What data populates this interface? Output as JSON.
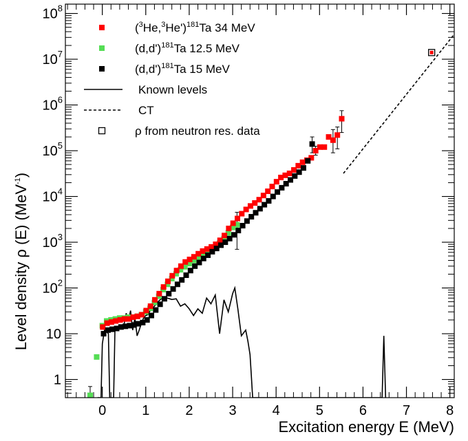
{
  "chart_data": {
    "type": "scatter",
    "xlabel": "Excitation energy E (MeV)",
    "ylabel": "Level density ρ (E) (MeV",
    "ylabel_sup": "-1",
    "ylabel_end": ")",
    "xlim": [
      -0.85,
      8.1
    ],
    "ylim": [
      0.4,
      160000000.0
    ],
    "yscale": "log",
    "x_ticks": [
      0,
      1,
      2,
      3,
      4,
      5,
      6,
      7,
      8
    ],
    "x_tick_labels": [
      "0",
      "1",
      "2",
      "3",
      "4",
      "5",
      "6",
      "7",
      "8"
    ],
    "y_ticks": [
      1,
      10,
      100,
      1000,
      10000,
      100000,
      1000000,
      10000000,
      100000000
    ],
    "y_tick_labels": [
      {
        "base": "1",
        "exp": ""
      },
      {
        "base": "10",
        "exp": ""
      },
      {
        "base": "10",
        "exp": "2"
      },
      {
        "base": "10",
        "exp": "3"
      },
      {
        "base": "10",
        "exp": "4"
      },
      {
        "base": "10",
        "exp": "5"
      },
      {
        "base": "10",
        "exp": "6"
      },
      {
        "base": "10",
        "exp": "7"
      },
      {
        "base": "10",
        "exp": "8"
      }
    ],
    "legend": [
      {
        "parts": [
          "(",
          "3",
          "He,",
          "3",
          "He')",
          "181",
          "Ta 34 MeV"
        ],
        "sup_idx": [
          1,
          3,
          5
        ],
        "kind": "square",
        "color": "#ff0000"
      },
      {
        "parts": [
          "(d,d')",
          "181",
          "Ta 12.5 MeV"
        ],
        "sup_idx": [
          1
        ],
        "kind": "square",
        "color": "#55dd55"
      },
      {
        "parts": [
          "(d,d')",
          "181",
          "Ta 15 MeV"
        ],
        "sup_idx": [
          1
        ],
        "kind": "square",
        "color": "#000000"
      },
      {
        "parts": [
          "Known levels"
        ],
        "sup_idx": [],
        "kind": "line",
        "color": "#000000"
      },
      {
        "parts": [
          "CT"
        ],
        "sup_idx": [],
        "kind": "dashed",
        "color": "#000000"
      },
      {
        "parts": [
          "ρ from neutron res. data"
        ],
        "sup_idx": [],
        "kind": "open-square",
        "color": "#000000"
      }
    ],
    "series": [
      {
        "name": "(3He,3He')181Ta 34 MeV",
        "color": "#ff0000",
        "points": [
          [
            0.01,
            14
          ],
          [
            0.11,
            17
          ],
          [
            0.21,
            18
          ],
          [
            0.31,
            19
          ],
          [
            0.41,
            20
          ],
          [
            0.51,
            21
          ],
          [
            0.61,
            21
          ],
          [
            0.71,
            23
          ],
          [
            0.81,
            24
          ],
          [
            0.91,
            26
          ],
          [
            1.01,
            32
          ],
          [
            1.11,
            40
          ],
          [
            1.21,
            55
          ],
          [
            1.31,
            75
          ],
          [
            1.41,
            105
          ],
          [
            1.51,
            140
          ],
          [
            1.61,
            185
          ],
          [
            1.71,
            240
          ],
          [
            1.81,
            300
          ],
          [
            1.91,
            370
          ],
          [
            2.01,
            420
          ],
          [
            2.11,
            480
          ],
          [
            2.21,
            560
          ],
          [
            2.31,
            640
          ],
          [
            2.41,
            710
          ],
          [
            2.51,
            790
          ],
          [
            2.61,
            900
          ],
          [
            2.71,
            1100
          ],
          [
            2.81,
            1400
          ],
          [
            2.91,
            2000
          ],
          [
            3.01,
            2600
          ],
          [
            3.11,
            3300
          ],
          [
            3.21,
            4200
          ],
          [
            3.31,
            5200
          ],
          [
            3.41,
            6200
          ],
          [
            3.51,
            7200
          ],
          [
            3.61,
            8500
          ],
          [
            3.71,
            10500
          ],
          [
            3.81,
            13000
          ],
          [
            3.91,
            16500
          ],
          [
            4.01,
            21000
          ],
          [
            4.11,
            26000
          ],
          [
            4.21,
            29000
          ],
          [
            4.31,
            32000
          ],
          [
            4.41,
            38000
          ],
          [
            4.51,
            47000
          ],
          [
            4.61,
            56000
          ],
          [
            4.71,
            62000
          ],
          [
            4.81,
            70000
          ],
          [
            4.91,
            100000
          ],
          [
            5.01,
            120000
          ],
          [
            5.11,
            120000
          ],
          [
            5.21,
            200000
          ],
          [
            5.31,
            170000
          ],
          [
            5.41,
            220000
          ],
          [
            5.51,
            500000
          ]
        ],
        "errors": [
          [
            4.91,
            80000,
            125000
          ],
          [
            5.31,
            90000,
            290000
          ],
          [
            5.41,
            110000,
            330000
          ],
          [
            5.51,
            250000,
            750000
          ]
        ]
      },
      {
        "name": "(d,d')181Ta 12.5 MeV",
        "color": "#55dd55",
        "points": [
          [
            -0.28,
            0.45
          ],
          [
            -0.13,
            3.1
          ],
          [
            0.0,
            15
          ],
          [
            0.1,
            19
          ],
          [
            0.2,
            20
          ],
          [
            0.3,
            21
          ],
          [
            0.4,
            22
          ],
          [
            0.5,
            22
          ],
          [
            0.6,
            23
          ],
          [
            0.7,
            23
          ],
          [
            0.8,
            24
          ],
          [
            0.9,
            26
          ],
          [
            1.0,
            30
          ],
          [
            1.1,
            36
          ],
          [
            1.2,
            48
          ],
          [
            1.3,
            66
          ],
          [
            1.4,
            92
          ],
          [
            1.5,
            120
          ],
          [
            1.6,
            160
          ],
          [
            1.7,
            205
          ],
          [
            1.8,
            250
          ],
          [
            1.9,
            290
          ],
          [
            2.0,
            340
          ],
          [
            2.1,
            400
          ],
          [
            2.2,
            460
          ],
          [
            2.3,
            530
          ],
          [
            2.4,
            610
          ],
          [
            2.5,
            690
          ],
          [
            2.6,
            780
          ],
          [
            2.7,
            950
          ],
          [
            2.8,
            1200
          ],
          [
            2.9,
            1600
          ],
          [
            3.0,
            2100
          ],
          [
            3.1,
            2400
          ]
        ],
        "errors": [
          [
            -0.28,
            0.3,
            0.7
          ],
          [
            3.1,
            700,
            4500
          ]
        ]
      },
      {
        "name": "(d,d')181Ta 15 MeV",
        "color": "#000000",
        "points": [
          [
            0.03,
            10
          ],
          [
            0.13,
            12
          ],
          [
            0.23,
            12.5
          ],
          [
            0.33,
            13
          ],
          [
            0.43,
            14
          ],
          [
            0.53,
            14.5
          ],
          [
            0.63,
            15
          ],
          [
            0.73,
            15.5
          ],
          [
            0.83,
            16.5
          ],
          [
            0.93,
            17.5
          ],
          [
            1.03,
            20
          ],
          [
            1.13,
            25
          ],
          [
            1.23,
            33
          ],
          [
            1.33,
            44
          ],
          [
            1.43,
            58
          ],
          [
            1.53,
            75
          ],
          [
            1.63,
            95
          ],
          [
            1.73,
            120
          ],
          [
            1.83,
            150
          ],
          [
            1.93,
            190
          ],
          [
            2.03,
            240
          ],
          [
            2.13,
            300
          ],
          [
            2.23,
            360
          ],
          [
            2.33,
            440
          ],
          [
            2.43,
            520
          ],
          [
            2.53,
            620
          ],
          [
            2.63,
            730
          ],
          [
            2.73,
            860
          ],
          [
            2.83,
            1000
          ],
          [
            2.93,
            1200
          ],
          [
            3.03,
            1450
          ],
          [
            3.13,
            1800
          ],
          [
            3.23,
            2300
          ],
          [
            3.33,
            2900
          ],
          [
            3.43,
            3600
          ],
          [
            3.53,
            4400
          ],
          [
            3.63,
            5400
          ],
          [
            3.73,
            6600
          ],
          [
            3.83,
            8000
          ],
          [
            3.93,
            10000
          ],
          [
            4.03,
            12500
          ],
          [
            4.13,
            15500
          ],
          [
            4.23,
            19000
          ],
          [
            4.33,
            23000
          ],
          [
            4.43,
            28000
          ],
          [
            4.53,
            34000
          ],
          [
            4.63,
            42000
          ],
          [
            4.73,
            60000
          ],
          [
            4.83,
            140000
          ]
        ],
        "errors": [
          [
            4.83,
            90000,
            200000
          ]
        ]
      },
      {
        "name": "Known levels",
        "color": "#000000",
        "line": [
          [
            -0.11,
            0.4
          ],
          [
            -0.03,
            0.4
          ],
          [
            0.0,
            6
          ],
          [
            0.05,
            12
          ],
          [
            0.1,
            11
          ],
          [
            0.14,
            10
          ],
          [
            0.17,
            0.4
          ],
          [
            0.26,
            0.4
          ],
          [
            0.29,
            12
          ],
          [
            0.35,
            14
          ],
          [
            0.4,
            15
          ],
          [
            0.45,
            13
          ],
          [
            0.5,
            16
          ],
          [
            0.55,
            28
          ],
          [
            0.6,
            19
          ],
          [
            0.65,
            32
          ],
          [
            0.7,
            12
          ],
          [
            0.75,
            22
          ],
          [
            0.8,
            9
          ],
          [
            0.85,
            12
          ],
          [
            0.9,
            17
          ],
          [
            0.95,
            22
          ],
          [
            1.0,
            25
          ],
          [
            1.05,
            26
          ],
          [
            1.1,
            32
          ],
          [
            1.2,
            40
          ],
          [
            1.3,
            52
          ],
          [
            1.4,
            62
          ],
          [
            1.5,
            60
          ],
          [
            1.6,
            56
          ],
          [
            1.7,
            58
          ],
          [
            1.8,
            40
          ],
          [
            1.9,
            45
          ],
          [
            2.0,
            35
          ],
          [
            2.1,
            25
          ],
          [
            2.2,
            35
          ],
          [
            2.3,
            28
          ],
          [
            2.4,
            60
          ],
          [
            2.5,
            45
          ],
          [
            2.6,
            70
          ],
          [
            2.7,
            10
          ],
          [
            2.8,
            55
          ],
          [
            2.9,
            30
          ],
          [
            3.0,
            75
          ],
          [
            3.05,
            100
          ],
          [
            3.12,
            35
          ],
          [
            3.2,
            9
          ],
          [
            3.3,
            12
          ],
          [
            3.35,
            7
          ],
          [
            3.4,
            3.5
          ],
          [
            3.43,
            1.2
          ],
          [
            3.46,
            0.4
          ],
          [
            6.44,
            0.4
          ],
          [
            6.48,
            9
          ],
          [
            6.52,
            0.4
          ]
        ]
      },
      {
        "name": "CT",
        "color": "#000000",
        "dashed": [
          [
            5.55,
            32000
          ],
          [
            8.1,
            35000000
          ]
        ]
      },
      {
        "name": "ρ from neutron res. data",
        "color": "#ff0000",
        "open_points": [
          [
            7.58,
            14000000
          ]
        ]
      }
    ]
  }
}
